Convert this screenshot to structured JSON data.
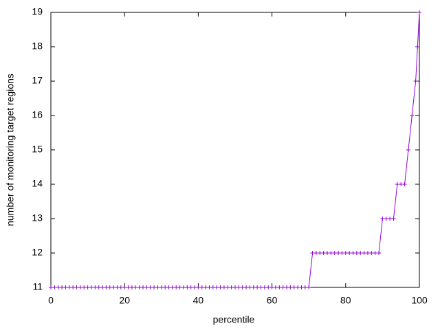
{
  "chart_data": {
    "type": "line",
    "xlabel": "percentile",
    "ylabel": "number of monitoring target regions",
    "x": [
      0,
      1,
      2,
      3,
      4,
      5,
      6,
      7,
      8,
      9,
      10,
      11,
      12,
      13,
      14,
      15,
      16,
      17,
      18,
      19,
      20,
      21,
      22,
      23,
      24,
      25,
      26,
      27,
      28,
      29,
      30,
      31,
      32,
      33,
      34,
      35,
      36,
      37,
      38,
      39,
      40,
      41,
      42,
      43,
      44,
      45,
      46,
      47,
      48,
      49,
      50,
      51,
      52,
      53,
      54,
      55,
      56,
      57,
      58,
      59,
      60,
      61,
      62,
      63,
      64,
      65,
      66,
      67,
      68,
      69,
      70,
      71,
      72,
      73,
      74,
      75,
      76,
      77,
      78,
      79,
      80,
      81,
      82,
      83,
      84,
      85,
      86,
      87,
      88,
      89,
      90,
      91,
      92,
      93,
      94,
      95,
      96,
      97,
      98,
      99,
      99.5,
      100
    ],
    "series": [
      {
        "color": "#9400d3",
        "values": [
          11,
          11,
          11,
          11,
          11,
          11,
          11,
          11,
          11,
          11,
          11,
          11,
          11,
          11,
          11,
          11,
          11,
          11,
          11,
          11,
          11,
          11,
          11,
          11,
          11,
          11,
          11,
          11,
          11,
          11,
          11,
          11,
          11,
          11,
          11,
          11,
          11,
          11,
          11,
          11,
          11,
          11,
          11,
          11,
          11,
          11,
          11,
          11,
          11,
          11,
          11,
          11,
          11,
          11,
          11,
          11,
          11,
          11,
          11,
          11,
          11,
          11,
          11,
          11,
          11,
          11,
          11,
          11,
          11,
          11,
          11,
          12,
          12,
          12,
          12,
          12,
          12,
          12,
          12,
          12,
          12,
          12,
          12,
          12,
          12,
          12,
          12,
          12,
          12,
          12,
          13,
          13,
          13,
          13,
          14,
          14,
          14,
          15,
          16,
          17,
          18,
          19
        ]
      }
    ],
    "xlim": [
      0,
      100
    ],
    "xticks": [
      0,
      20,
      40,
      60,
      80,
      100
    ],
    "ylim": [
      11,
      19
    ],
    "yticks": [
      11,
      12,
      13,
      14,
      15,
      16,
      17,
      18,
      19
    ]
  }
}
